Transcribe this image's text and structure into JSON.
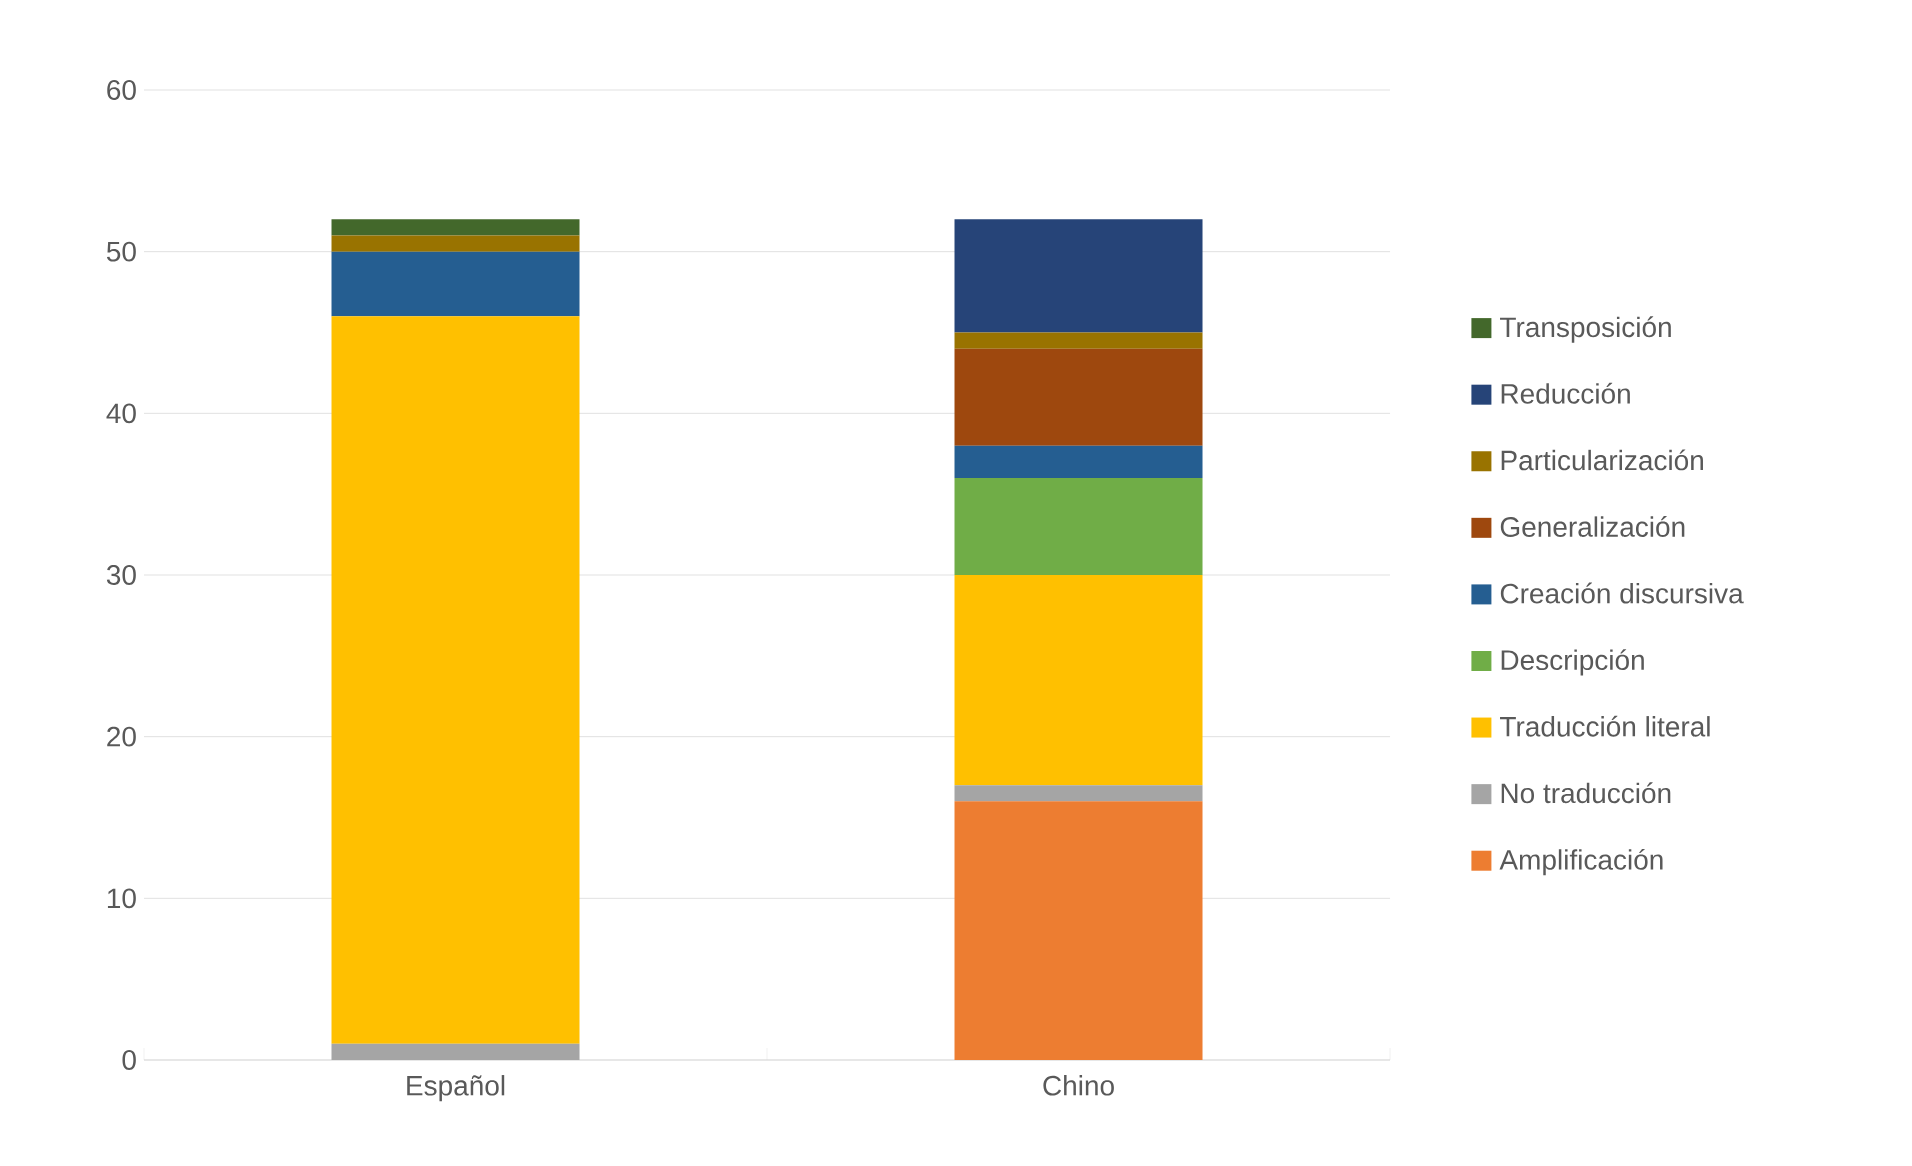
{
  "chart_data": {
    "type": "bar",
    "stacked": true,
    "categories": [
      "Español",
      "Chino"
    ],
    "series": [
      {
        "name": "Amplificación",
        "color": "#ed7d31",
        "values": [
          0,
          16
        ]
      },
      {
        "name": "No traducción",
        "color": "#a5a5a5",
        "values": [
          1,
          1
        ]
      },
      {
        "name": "Traducción literal",
        "color": "#ffc000",
        "values": [
          45,
          13
        ]
      },
      {
        "name": "Descripción",
        "color": "#70ad47",
        "values": [
          0,
          6
        ]
      },
      {
        "name": "Creación discursiva",
        "color": "#255e91",
        "values": [
          4,
          2
        ]
      },
      {
        "name": "Generalización",
        "color": "#9e480e",
        "values": [
          0,
          6
        ]
      },
      {
        "name": "Particularización",
        "color": "#997300",
        "values": [
          1,
          1
        ]
      },
      {
        "name": "Reducción",
        "color": "#264478",
        "values": [
          0,
          7
        ]
      },
      {
        "name": "Transposición",
        "color": "#43682b",
        "values": [
          1,
          0
        ]
      }
    ],
    "ylim": [
      0,
      60
    ],
    "yticks": [
      0,
      10,
      20,
      30,
      40,
      50,
      60
    ],
    "grid": "y",
    "legend": "right"
  }
}
